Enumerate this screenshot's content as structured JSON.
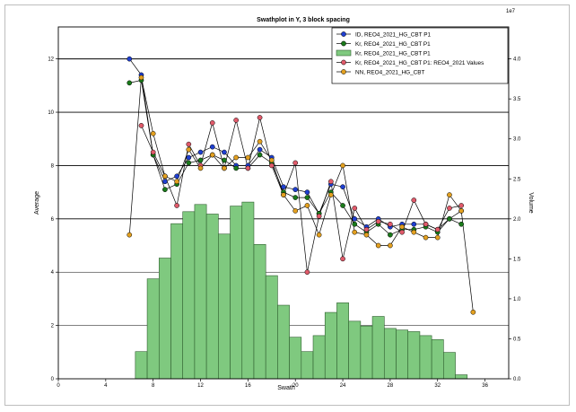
{
  "chart_data": {
    "type": "line+bar",
    "title": "Swathplot in Y, 3 block spacing",
    "xlabel": "Swath",
    "ylabel": "Average",
    "y2label": "Volume",
    "y2_exponent": "1e7",
    "xlim": [
      0,
      38
    ],
    "ylim": [
      0,
      13.2
    ],
    "y2lim": [
      0,
      4.4
    ],
    "xticks": [
      0,
      4,
      8,
      12,
      16,
      20,
      24,
      28,
      32,
      36
    ],
    "yticks": [
      0,
      2,
      4,
      6,
      8,
      10,
      12
    ],
    "y2ticks": [
      0,
      0.5,
      1,
      1.5,
      2,
      2.5,
      3,
      3.5,
      4
    ],
    "gridlines_y": [
      2,
      4,
      6,
      8,
      10,
      12
    ],
    "x": [
      6,
      7,
      8,
      9,
      10,
      11,
      12,
      13,
      14,
      15,
      16,
      17,
      18,
      19,
      20,
      21,
      22,
      23,
      24,
      25,
      26,
      27,
      28,
      29,
      30,
      31,
      32,
      33,
      34,
      35
    ],
    "bars": {
      "name": "Kr, REO4_2021_HG_CBT P1",
      "axis": "right",
      "color": "#7fc97f",
      "x": [
        7,
        8,
        9,
        10,
        11,
        12,
        13,
        14,
        15,
        16,
        17,
        18,
        19,
        20,
        21,
        22,
        23,
        24,
        25,
        26,
        27,
        28,
        29,
        30,
        31,
        32,
        33,
        34
      ],
      "values": [
        0.34,
        1.25,
        1.51,
        1.94,
        2.09,
        2.18,
        2.06,
        1.81,
        2.16,
        2.21,
        1.68,
        1.29,
        0.92,
        0.52,
        0.34,
        0.54,
        0.83,
        0.95,
        0.72,
        0.66,
        0.78,
        0.63,
        0.61,
        0.59,
        0.54,
        0.49,
        0.33,
        0.05
      ]
    },
    "series": [
      {
        "name": "ID, REO4_2021_HG_CBT P1",
        "color": "#1f3fd0",
        "values": [
          12.0,
          11.4,
          8.4,
          7.4,
          7.6,
          8.3,
          8.5,
          8.7,
          8.5,
          8.0,
          8.0,
          8.6,
          8.3,
          7.2,
          7.1,
          7.0,
          6.2,
          7.3,
          7.2,
          6.0,
          5.7,
          6.0,
          5.7,
          5.8,
          5.8,
          5.8,
          5.6,
          6.0,
          6.3,
          null
        ]
      },
      {
        "name": "Kr, REO4_2021_HG_CBT P1",
        "color": "#1a7a1a",
        "values": [
          11.1,
          11.2,
          8.4,
          7.1,
          7.3,
          8.1,
          8.2,
          8.4,
          8.2,
          7.9,
          7.9,
          8.4,
          8.1,
          7.0,
          6.8,
          6.8,
          6.2,
          7.0,
          6.5,
          5.8,
          5.5,
          5.8,
          5.4,
          5.6,
          5.6,
          5.7,
          5.5,
          6.0,
          5.8,
          null
        ]
      },
      {
        "name": "Kr, REO4_2021_HG_CBT P1: REO4_2021 Values",
        "color": "#e05a6a",
        "values": [
          null,
          9.5,
          8.5,
          7.6,
          6.5,
          8.8,
          8.0,
          9.6,
          7.9,
          9.7,
          7.9,
          9.8,
          8.0,
          6.9,
          8.1,
          4.0,
          6.1,
          7.4,
          4.5,
          6.4,
          5.6,
          5.9,
          5.8,
          5.5,
          6.7,
          5.8,
          5.6,
          6.4,
          6.5,
          null
        ]
      },
      {
        "name": "NN, REO4_2021_HG_CBT",
        "color": "#e3a020",
        "values": [
          5.4,
          11.3,
          9.2,
          7.6,
          7.4,
          8.6,
          7.9,
          8.4,
          7.9,
          8.3,
          8.3,
          8.9,
          8.2,
          6.9,
          6.3,
          6.5,
          5.4,
          6.9,
          8.0,
          5.5,
          5.4,
          5.0,
          5.0,
          5.7,
          5.5,
          5.3,
          5.3,
          6.9,
          6.3,
          2.5
        ]
      }
    ],
    "legend_position": "top-right"
  }
}
